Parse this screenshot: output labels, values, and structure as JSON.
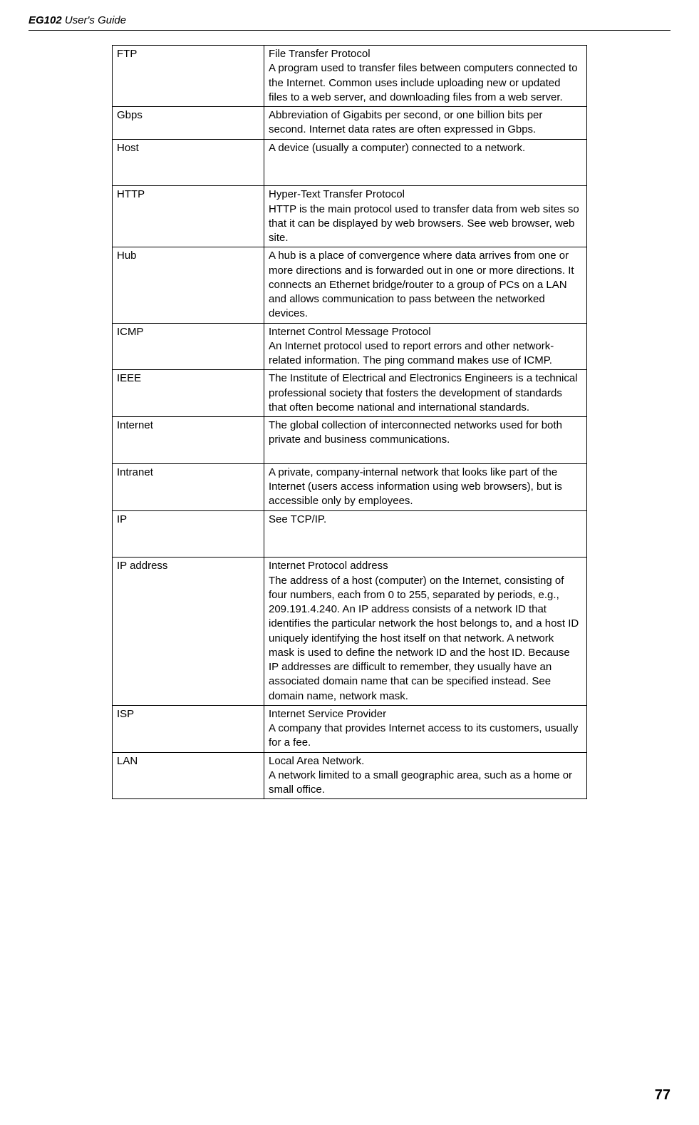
{
  "header": {
    "product": "EG102",
    "subtitle": "User's Guide"
  },
  "glossary": [
    {
      "term": "FTP",
      "definition": "File Transfer Protocol\nA program used to transfer files between computers connected to the Internet. Common uses include uploading new or updated files to a web server, and downloading files from a web server."
    },
    {
      "term": "Gbps",
      "definition": "Abbreviation of Gigabits per second, or one billion bits per second. Internet data rates are often expressed in Gbps.\n"
    },
    {
      "term": "Host",
      "definition": "A device (usually a computer) connected to a network.\n\n\n"
    },
    {
      "term": "HTTP",
      "definition": "Hyper-Text Transfer Protocol\nHTTP is the main protocol used to transfer data from web sites so that it can be displayed by web browsers. See web browser, web site."
    },
    {
      "term": "Hub",
      "definition": "A hub is a place of convergence where data arrives from one or more directions and is forwarded out in one or more directions. It connects an Ethernet bridge/router to a group of PCs on a LAN and allows communication to pass between the networked devices."
    },
    {
      "term": "ICMP",
      "definition": "Internet Control Message Protocol\nAn Internet protocol used to report errors and other network-related information. The ping command makes use of ICMP."
    },
    {
      "term": "IEEE",
      "definition": "The Institute of Electrical and Electronics Engineers is a technical professional society that fosters the development of standards that often become national and international standards."
    },
    {
      "term": "Internet",
      "definition": "The global collection of interconnected networks used for both private and business communications.\n\n"
    },
    {
      "term": "Intranet",
      "definition": "A private, company-internal network that looks like part of the Internet (users access information using web browsers), but is accessible only by employees.\n"
    },
    {
      "term": "IP",
      "definition": "See TCP/IP.\n\n\n"
    },
    {
      "term": "IP address",
      "definition": "Internet Protocol address\nThe address of a host (computer) on the Internet, consisting of four numbers, each from 0 to 255, separated by periods, e.g., 209.191.4.240. An IP address consists of a network ID that identifies the particular network the host belongs to, and a host ID uniquely identifying the host itself on that network. A network mask is used to define the network ID and the host ID. Because IP addresses are difficult to remember, they usually have an associated domain name that can be specified instead. See domain name, network mask."
    },
    {
      "term": "ISP",
      "definition": "Internet Service Provider\nA company that provides Internet access to its customers, usually for a fee.\n"
    },
    {
      "term": "LAN",
      "definition": "Local Area Network.\nA network limited to a small geographic area, such as a home or small office.\n"
    }
  ],
  "page_number": "77"
}
